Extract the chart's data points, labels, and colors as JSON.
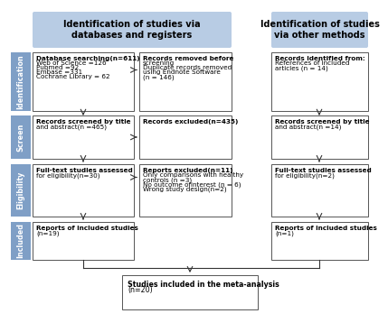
{
  "header_left": "Identification of studies via\ndatabases and registers",
  "header_right": "Identification of studies\nvia other methods",
  "header_bg": "#b8cce4",
  "side_bg": "#7f9fc6",
  "box_bg": "#ffffff",
  "box_border": "#555555",
  "arrow_color": "#333333",
  "font_size_header": 7.0,
  "font_size_box": 5.2,
  "font_size_side": 5.8,
  "side_labels": [
    "Identification",
    "Screen",
    "Eligibility",
    "Included"
  ],
  "db_search": "Database searching(n=611)\nWeb of Science =126\nPubmed =92\nEmbase =331\nCochrane Library = 62",
  "records_removed": "Records removed before\nscreening\nDuplicate records removed\nusing Endnote Software\n(n = 146)",
  "records_identified": "Records identified from:\nReferences of included\narticles (n = 14)",
  "screened_left": "Records screened by title\nand abstract(n =465)",
  "records_excluded": "Records excluded(n=435)",
  "screened_right": "Records screened by title\nand abstract(n =14)",
  "fulltext_left": "Full-text studies assessed\nfor eligibility(n=30)",
  "reports_excluded": "Reports excluded(n=11)\nOnly comparisons with healthy\ncontrols (n =3)\nNo outcome ofinterest (n = 6)\nWrong study design(n=2)",
  "fulltext_right": "Full-text studies assessed\nfor eligibility(n=2)",
  "included_left": "Reports of included studies\n(n=19)",
  "included_right": "Reports of included studies\n(n=1)",
  "meta_analysis": "Studies included in the meta-analysis\n(n=20)"
}
